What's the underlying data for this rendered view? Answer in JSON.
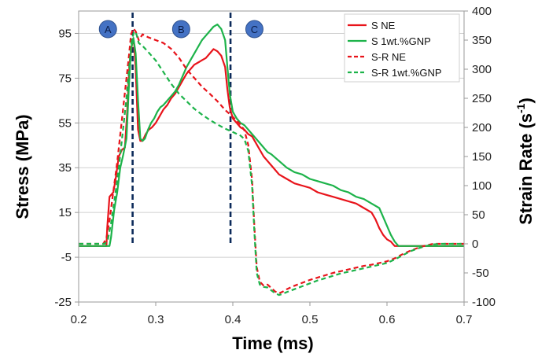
{
  "chart_data": {
    "type": "line",
    "x_axis": {
      "label": "Time (ms)",
      "min": 0.2,
      "max": 0.7,
      "ticks": [
        "0.2",
        "0.3",
        "0.4",
        "0.5",
        "0.6",
        "0.7"
      ]
    },
    "y_left": {
      "label": "Stress (MPa)",
      "min": -25,
      "max": 105,
      "ticks": [
        "-25",
        "-5",
        "15",
        "35",
        "55",
        "75",
        "95"
      ]
    },
    "y_right": {
      "label_main": "Strain Rate (s",
      "label_sup": "-1",
      "label_end": ")",
      "min": -100,
      "max": 400,
      "ticks": [
        "-100",
        "-50",
        "0",
        "50",
        "100",
        "150",
        "200",
        "250",
        "300",
        "350",
        "400"
      ]
    },
    "grid": true,
    "legend_position": "top-right",
    "regions": [
      "A",
      "B",
      "C"
    ],
    "region_x": [
      0.238,
      0.333,
      0.428
    ],
    "vlines_x": [
      0.27,
      0.397
    ],
    "series": [
      {
        "name": "S NE",
        "axis": "left",
        "color": "#e8141b",
        "dash": "solid",
        "points": [
          [
            0.2,
            0
          ],
          [
            0.236,
            0
          ],
          [
            0.237,
            8
          ],
          [
            0.24,
            22
          ],
          [
            0.245,
            24
          ],
          [
            0.248,
            30
          ],
          [
            0.252,
            40
          ],
          [
            0.256,
            43
          ],
          [
            0.26,
            44
          ],
          [
            0.263,
            60
          ],
          [
            0.266,
            82
          ],
          [
            0.27,
            92
          ],
          [
            0.272,
            90
          ],
          [
            0.274,
            79
          ],
          [
            0.277,
            52
          ],
          [
            0.28,
            47
          ],
          [
            0.283,
            47
          ],
          [
            0.287,
            50
          ],
          [
            0.291,
            52
          ],
          [
            0.295,
            53
          ],
          [
            0.3,
            55
          ],
          [
            0.305,
            58
          ],
          [
            0.31,
            61
          ],
          [
            0.315,
            63
          ],
          [
            0.32,
            66
          ],
          [
            0.325,
            68
          ],
          [
            0.33,
            71
          ],
          [
            0.335,
            74
          ],
          [
            0.34,
            77
          ],
          [
            0.345,
            79
          ],
          [
            0.35,
            81
          ],
          [
            0.355,
            82
          ],
          [
            0.36,
            83
          ],
          [
            0.365,
            84
          ],
          [
            0.37,
            86
          ],
          [
            0.375,
            88
          ],
          [
            0.38,
            87
          ],
          [
            0.385,
            85
          ],
          [
            0.39,
            80
          ],
          [
            0.393,
            70
          ],
          [
            0.396,
            62
          ],
          [
            0.4,
            57
          ],
          [
            0.405,
            55
          ],
          [
            0.41,
            53
          ],
          [
            0.415,
            52
          ],
          [
            0.42,
            50
          ],
          [
            0.425,
            49
          ],
          [
            0.43,
            46
          ],
          [
            0.435,
            43
          ],
          [
            0.44,
            40
          ],
          [
            0.445,
            38
          ],
          [
            0.45,
            36
          ],
          [
            0.46,
            32
          ],
          [
            0.47,
            30
          ],
          [
            0.48,
            28
          ],
          [
            0.49,
            27
          ],
          [
            0.5,
            26
          ],
          [
            0.51,
            24
          ],
          [
            0.52,
            23
          ],
          [
            0.53,
            22
          ],
          [
            0.54,
            21
          ],
          [
            0.55,
            20
          ],
          [
            0.56,
            19
          ],
          [
            0.57,
            17
          ],
          [
            0.58,
            15
          ],
          [
            0.585,
            12
          ],
          [
            0.59,
            8
          ],
          [
            0.595,
            5
          ],
          [
            0.6,
            3
          ],
          [
            0.605,
            2
          ],
          [
            0.61,
            0
          ],
          [
            0.7,
            0
          ]
        ]
      },
      {
        "name": "S 1wt.%GNP",
        "axis": "left",
        "color": "#1db34a",
        "dash": "solid",
        "points": [
          [
            0.2,
            0
          ],
          [
            0.24,
            0
          ],
          [
            0.242,
            4
          ],
          [
            0.246,
            16
          ],
          [
            0.25,
            24
          ],
          [
            0.254,
            35
          ],
          [
            0.258,
            41
          ],
          [
            0.262,
            48
          ],
          [
            0.265,
            70
          ],
          [
            0.268,
            88
          ],
          [
            0.271,
            93
          ],
          [
            0.274,
            86
          ],
          [
            0.277,
            65
          ],
          [
            0.28,
            48
          ],
          [
            0.283,
            47
          ],
          [
            0.286,
            48
          ],
          [
            0.29,
            52
          ],
          [
            0.294,
            55
          ],
          [
            0.298,
            57
          ],
          [
            0.302,
            60
          ],
          [
            0.306,
            62
          ],
          [
            0.31,
            63
          ],
          [
            0.315,
            65
          ],
          [
            0.32,
            67
          ],
          [
            0.325,
            69
          ],
          [
            0.33,
            72
          ],
          [
            0.335,
            76
          ],
          [
            0.34,
            80
          ],
          [
            0.345,
            83
          ],
          [
            0.35,
            86
          ],
          [
            0.355,
            89
          ],
          [
            0.36,
            92
          ],
          [
            0.365,
            94
          ],
          [
            0.37,
            96
          ],
          [
            0.375,
            98
          ],
          [
            0.38,
            99
          ],
          [
            0.385,
            97
          ],
          [
            0.39,
            92
          ],
          [
            0.393,
            80
          ],
          [
            0.396,
            68
          ],
          [
            0.4,
            60
          ],
          [
            0.405,
            57
          ],
          [
            0.41,
            55
          ],
          [
            0.415,
            54
          ],
          [
            0.42,
            52
          ],
          [
            0.425,
            50
          ],
          [
            0.43,
            48
          ],
          [
            0.435,
            46
          ],
          [
            0.44,
            44
          ],
          [
            0.445,
            42
          ],
          [
            0.45,
            41
          ],
          [
            0.46,
            38
          ],
          [
            0.47,
            35
          ],
          [
            0.48,
            33
          ],
          [
            0.49,
            32
          ],
          [
            0.5,
            30
          ],
          [
            0.51,
            29
          ],
          [
            0.52,
            28
          ],
          [
            0.53,
            27
          ],
          [
            0.54,
            25
          ],
          [
            0.55,
            24
          ],
          [
            0.56,
            22
          ],
          [
            0.57,
            21
          ],
          [
            0.58,
            19
          ],
          [
            0.59,
            17
          ],
          [
            0.595,
            13
          ],
          [
            0.6,
            9
          ],
          [
            0.605,
            5
          ],
          [
            0.61,
            2
          ],
          [
            0.615,
            0
          ],
          [
            0.7,
            0
          ]
        ]
      },
      {
        "name": "S-R NE",
        "axis": "right",
        "color": "#e8141b",
        "dash": "dashed",
        "points": [
          [
            0.2,
            0
          ],
          [
            0.232,
            0
          ],
          [
            0.236,
            10
          ],
          [
            0.24,
            40
          ],
          [
            0.245,
            90
          ],
          [
            0.25,
            140
          ],
          [
            0.255,
            200
          ],
          [
            0.26,
            260
          ],
          [
            0.265,
            320
          ],
          [
            0.268,
            360
          ],
          [
            0.271,
            370
          ],
          [
            0.274,
            365
          ],
          [
            0.278,
            350
          ],
          [
            0.283,
            360
          ],
          [
            0.29,
            355
          ],
          [
            0.3,
            350
          ],
          [
            0.31,
            345
          ],
          [
            0.32,
            335
          ],
          [
            0.33,
            320
          ],
          [
            0.34,
            300
          ],
          [
            0.35,
            285
          ],
          [
            0.36,
            270
          ],
          [
            0.37,
            258
          ],
          [
            0.38,
            245
          ],
          [
            0.39,
            230
          ],
          [
            0.4,
            218
          ],
          [
            0.41,
            205
          ],
          [
            0.415,
            195
          ],
          [
            0.42,
            170
          ],
          [
            0.425,
            110
          ],
          [
            0.428,
            30
          ],
          [
            0.431,
            -40
          ],
          [
            0.435,
            -65
          ],
          [
            0.44,
            -72
          ],
          [
            0.445,
            -70
          ],
          [
            0.45,
            -76
          ],
          [
            0.455,
            -82
          ],
          [
            0.46,
            -85
          ],
          [
            0.465,
            -82
          ],
          [
            0.47,
            -78
          ],
          [
            0.48,
            -72
          ],
          [
            0.49,
            -67
          ],
          [
            0.5,
            -62
          ],
          [
            0.51,
            -58
          ],
          [
            0.52,
            -54
          ],
          [
            0.53,
            -50
          ],
          [
            0.54,
            -47
          ],
          [
            0.55,
            -44
          ],
          [
            0.56,
            -41
          ],
          [
            0.57,
            -38
          ],
          [
            0.58,
            -36
          ],
          [
            0.59,
            -33
          ],
          [
            0.6,
            -30
          ],
          [
            0.61,
            -25
          ],
          [
            0.62,
            -18
          ],
          [
            0.63,
            -12
          ],
          [
            0.64,
            -7
          ],
          [
            0.65,
            -3
          ],
          [
            0.66,
            0
          ],
          [
            0.7,
            0
          ]
        ]
      },
      {
        "name": "S-R 1wt.%GNP",
        "axis": "right",
        "color": "#1db34a",
        "dash": "dashed",
        "points": [
          [
            0.2,
            0
          ],
          [
            0.234,
            0
          ],
          [
            0.238,
            8
          ],
          [
            0.242,
            35
          ],
          [
            0.247,
            80
          ],
          [
            0.252,
            130
          ],
          [
            0.257,
            190
          ],
          [
            0.262,
            250
          ],
          [
            0.266,
            310
          ],
          [
            0.269,
            350
          ],
          [
            0.272,
            365
          ],
          [
            0.275,
            360
          ],
          [
            0.278,
            345
          ],
          [
            0.283,
            340
          ],
          [
            0.29,
            330
          ],
          [
            0.3,
            315
          ],
          [
            0.31,
            295
          ],
          [
            0.32,
            275
          ],
          [
            0.33,
            258
          ],
          [
            0.34,
            245
          ],
          [
            0.35,
            232
          ],
          [
            0.36,
            222
          ],
          [
            0.37,
            213
          ],
          [
            0.38,
            205
          ],
          [
            0.39,
            198
          ],
          [
            0.4,
            192
          ],
          [
            0.41,
            186
          ],
          [
            0.415,
            180
          ],
          [
            0.42,
            160
          ],
          [
            0.425,
            100
          ],
          [
            0.428,
            20
          ],
          [
            0.431,
            -50
          ],
          [
            0.435,
            -70
          ],
          [
            0.44,
            -74
          ],
          [
            0.445,
            -75
          ],
          [
            0.45,
            -80
          ],
          [
            0.455,
            -85
          ],
          [
            0.46,
            -88
          ],
          [
            0.465,
            -86
          ],
          [
            0.47,
            -83
          ],
          [
            0.48,
            -78
          ],
          [
            0.49,
            -73
          ],
          [
            0.5,
            -68
          ],
          [
            0.51,
            -63
          ],
          [
            0.52,
            -59
          ],
          [
            0.53,
            -55
          ],
          [
            0.54,
            -51
          ],
          [
            0.55,
            -48
          ],
          [
            0.56,
            -45
          ],
          [
            0.57,
            -42
          ],
          [
            0.58,
            -39
          ],
          [
            0.59,
            -36
          ],
          [
            0.6,
            -33
          ],
          [
            0.61,
            -27
          ],
          [
            0.62,
            -20
          ],
          [
            0.63,
            -13
          ],
          [
            0.64,
            -8
          ],
          [
            0.65,
            -4
          ],
          [
            0.66,
            -1
          ],
          [
            0.67,
            0
          ],
          [
            0.7,
            0
          ]
        ]
      }
    ]
  }
}
